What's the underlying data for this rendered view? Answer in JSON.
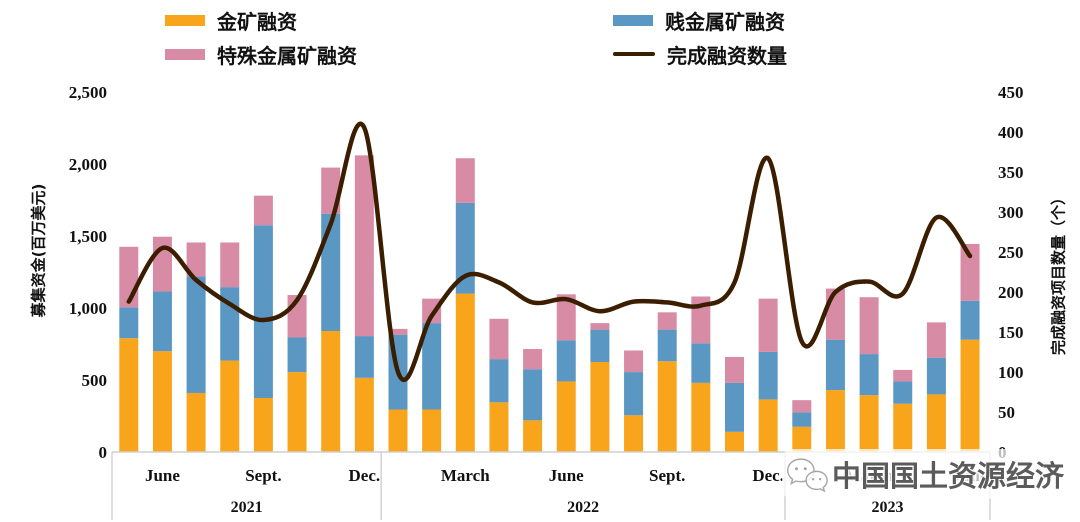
{
  "legend": {
    "items": [
      {
        "id": "gold",
        "label": "金矿融资",
        "color": "#F9A51B",
        "type": "bar"
      },
      {
        "id": "base",
        "label": "贱金属矿融资",
        "color": "#5B97C3",
        "type": "bar"
      },
      {
        "id": "special",
        "label": "特殊金属矿融资",
        "color": "#D88BA4",
        "type": "bar"
      },
      {
        "id": "count",
        "label": "完成融资数量",
        "color": "#3B1D00",
        "type": "line"
      }
    ]
  },
  "watermark": {
    "text": "中国国土资源经济",
    "icon": "wechat-icon"
  },
  "chart_data": {
    "type": "bar",
    "stacked": true,
    "title": "",
    "ylabel_left": "募集资金(百万美元)",
    "ylabel_right": "完成融资项目数量（个）",
    "ylim_left": [
      0,
      2500
    ],
    "ylim_right": [
      0,
      450
    ],
    "y_left_ticks": [
      "0",
      "500",
      "1,000",
      "1,500",
      "2,000",
      "2,500"
    ],
    "y_right_ticks": [
      "0",
      "50",
      "100",
      "150",
      "200",
      "250",
      "300",
      "350",
      "400",
      "450"
    ],
    "x": [
      "2021-05",
      "2021-06",
      "2021-07",
      "2021-08",
      "2021-09",
      "2021-10",
      "2021-11",
      "2021-12",
      "2022-01",
      "2022-02",
      "2022-03",
      "2022-04",
      "2022-05",
      "2022-06",
      "2022-07",
      "2022-08",
      "2022-09",
      "2022-10",
      "2022-11",
      "2022-12",
      "2023-01",
      "2023-02",
      "2023-03",
      "2023-04",
      "2023-05",
      "2023-06"
    ],
    "x_tick_labels": [
      {
        "text": "June",
        "index": 1
      },
      {
        "text": "Sept.",
        "index": 4
      },
      {
        "text": "Dec.",
        "index": 7
      },
      {
        "text": "March",
        "index": 10
      },
      {
        "text": "June",
        "index": 13
      },
      {
        "text": "Sept.",
        "index": 16
      },
      {
        "text": "Dec.",
        "index": 19
      },
      {
        "text": "March",
        "index": 22
      },
      {
        "text": "June",
        "index": 25
      }
    ],
    "year_groups": [
      {
        "label": "2021",
        "start": 0,
        "end": 7
      },
      {
        "label": "2022",
        "start": 8,
        "end": 19
      },
      {
        "label": "2023",
        "start": 20,
        "end": 25
      }
    ],
    "series": [
      {
        "name": "金矿融资",
        "type": "bar",
        "color": "#F9A51B",
        "values": [
          790,
          700,
          410,
          635,
          375,
          555,
          840,
          515,
          295,
          295,
          1100,
          345,
          220,
          490,
          625,
          255,
          630,
          480,
          140,
          365,
          175,
          430,
          395,
          335,
          400,
          780
        ]
      },
      {
        "name": "贱金属矿融资",
        "type": "bar",
        "color": "#5B97C3",
        "values": [
          215,
          415,
          810,
          510,
          1200,
          240,
          815,
          290,
          520,
          600,
          630,
          300,
          355,
          285,
          225,
          300,
          220,
          275,
          340,
          330,
          100,
          350,
          285,
          155,
          255,
          270
        ]
      },
      {
        "name": "特殊金属矿融资",
        "type": "bar",
        "color": "#D88BA4",
        "values": [
          420,
          380,
          235,
          310,
          205,
          295,
          320,
          1255,
          40,
          170,
          310,
          280,
          140,
          320,
          45,
          150,
          120,
          325,
          180,
          370,
          85,
          355,
          395,
          80,
          245,
          395
        ]
      },
      {
        "name": "完成融资数量",
        "type": "line",
        "axis": "right",
        "color": "#3B1D00",
        "values": [
          188,
          255,
          215,
          185,
          165,
          190,
          285,
          405,
          100,
          170,
          220,
          212,
          187,
          191,
          176,
          188,
          187,
          183,
          212,
          367,
          138,
          200,
          213,
          198,
          293,
          245
        ]
      }
    ]
  }
}
